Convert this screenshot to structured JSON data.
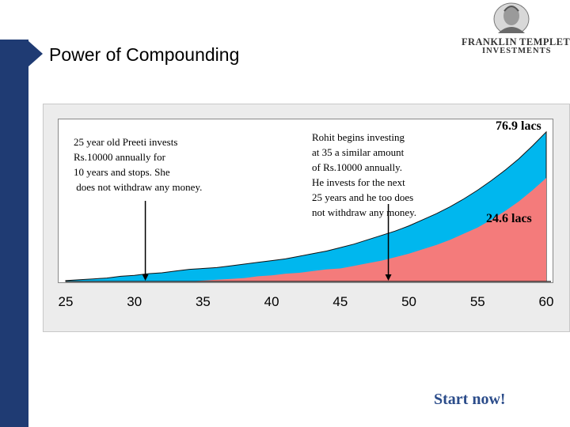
{
  "slide": {
    "title": "Power of Compounding",
    "footer": "Start now!"
  },
  "logo": {
    "line1": "FRANKLIN TEMPLETON",
    "line2": "INVESTMENTS"
  },
  "colors": {
    "rohit_area": "#00b7ee",
    "preeti_area": "#f47b7b",
    "sidebar": "#1f3b73"
  },
  "annotations": {
    "preeti": "25 year old Preeti invests\nRs.10000 annually for\n10 years and stops. She\n does not withdraw any money.",
    "rohit": "Rohit begins investing\nat 35 a similar amount\nof Rs.10000 annually.\nHe invests for the next\n25 years and he too does\nnot withdraw any money.",
    "label_top": "76.9 lacs",
    "label_bottom": "24.6 lacs"
  },
  "chart_data": {
    "type": "area",
    "x": [
      25,
      26,
      27,
      28,
      29,
      30,
      31,
      32,
      33,
      34,
      35,
      36,
      37,
      38,
      39,
      40,
      41,
      42,
      43,
      44,
      45,
      46,
      47,
      48,
      49,
      50,
      51,
      52,
      53,
      54,
      55,
      56,
      57,
      58,
      59,
      60
    ],
    "series": [
      {
        "values": [
          0.1,
          0.2,
          0.3,
          0.4,
          0.6,
          0.7,
          0.9,
          1.0,
          1.2,
          1.4,
          1.5,
          1.6,
          1.8,
          2.0,
          2.2,
          2.4,
          2.6,
          2.9,
          3.2,
          3.5,
          3.9,
          4.3,
          4.8,
          5.3,
          5.8,
          6.4,
          7.1,
          7.8,
          8.6,
          9.5,
          10.5,
          11.6,
          12.8,
          14.1,
          15.6,
          17.2
        ]
      },
      {
        "values": [
          0,
          0,
          0,
          0,
          0,
          0,
          0,
          0,
          0,
          0,
          0.1,
          0.2,
          0.3,
          0.4,
          0.6,
          0.7,
          0.9,
          1.0,
          1.2,
          1.4,
          1.5,
          1.8,
          2.1,
          2.4,
          2.8,
          3.2,
          3.7,
          4.2,
          4.8,
          5.5,
          6.2,
          7.1,
          8.1,
          9.2,
          10.5,
          11.9
        ]
      }
    ],
    "xticks": [
      "25",
      "30",
      "35",
      "40",
      "45",
      "50",
      "55",
      "60"
    ],
    "xlim": [
      25,
      60
    ],
    "ylim": [
      0,
      18
    ],
    "arrows_at_x": [
      30.8,
      48.5
    ]
  }
}
